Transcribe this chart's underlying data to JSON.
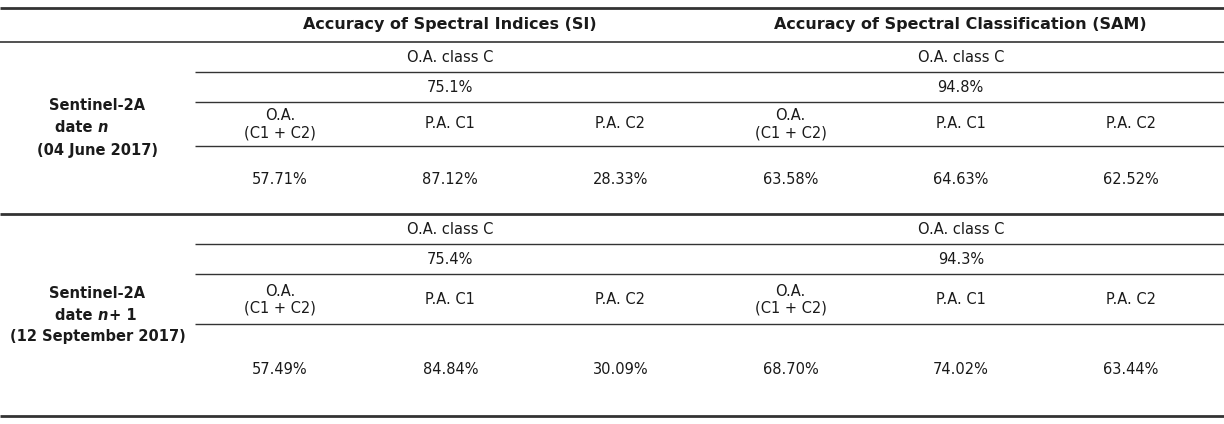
{
  "figsize": [
    12.24,
    4.24
  ],
  "dpi": 100,
  "col_headers": [
    "Accuracy of Spectral Indices (SI)",
    "Accuracy of Spectral Classification (SAM)"
  ],
  "oa_class_c": "O.A. class C",
  "sub_col_headers_line1": [
    "O.A.",
    "P.A. C1",
    "P.A. C2",
    "O.A.",
    "P.A. C1",
    "P.A. C2"
  ],
  "sub_col_headers_line2": [
    "(C1 + C2)",
    "",
    "",
    "(C1 + C2)",
    "",
    ""
  ],
  "row1_oa_c_vals": [
    "75.1%",
    "94.8%"
  ],
  "row1_data": [
    "57.71%",
    "87.12%",
    "28.33%",
    "63.58%",
    "64.63%",
    "62.52%"
  ],
  "row2_oa_c_vals": [
    "75.4%",
    "94.3%"
  ],
  "row2_data": [
    "57.49%",
    "84.84%",
    "30.09%",
    "68.70%",
    "74.02%",
    "63.44%"
  ],
  "label1_lines": [
    "Sentinel-2A",
    "date n",
    "(04 June 2017)"
  ],
  "label2_lines": [
    "Sentinel-2A",
    "date n + 1",
    "(12 September 2017)"
  ],
  "bg_color": "#ffffff",
  "text_color": "#1a1a1a",
  "line_color": "#333333",
  "fs_header": 11.5,
  "fs_body": 10.5
}
